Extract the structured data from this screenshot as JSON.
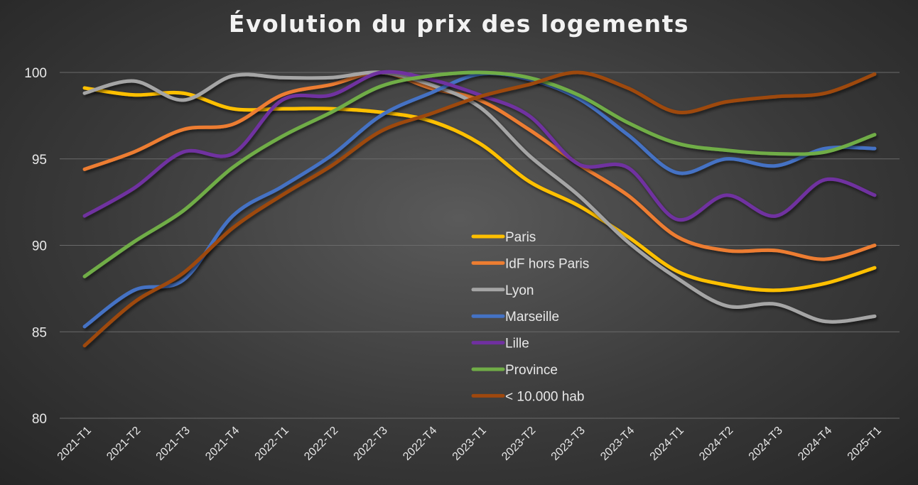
{
  "chart_data": {
    "type": "line",
    "title": "Évolution du prix des logements",
    "xlabel": "",
    "ylabel": "",
    "categories": [
      "2021-T1",
      "2021-T2",
      "2021-T3",
      "2021-T4",
      "2022-T1",
      "2022-T2",
      "2022-T3",
      "2022-T4",
      "2023-T1",
      "2023-T2",
      "2023-T3",
      "2023-T4",
      "2024-T1",
      "2024-T2",
      "2024-T3",
      "2024-T4",
      "2025-T1"
    ],
    "ylim": [
      80,
      100
    ],
    "yticks": [
      80,
      85,
      90,
      95,
      100
    ],
    "grid": true,
    "smooth": true,
    "legend_position": "center-inside",
    "series": [
      {
        "name": "Paris",
        "color": "#ffc000",
        "values": [
          99.1,
          98.7,
          98.8,
          97.9,
          97.9,
          97.9,
          97.7,
          97.2,
          95.9,
          93.7,
          92.3,
          90.5,
          88.5,
          87.7,
          87.4,
          87.8,
          88.7
        ]
      },
      {
        "name": "IdF hors Paris",
        "color": "#ed7d31",
        "values": [
          94.4,
          95.4,
          96.7,
          97.0,
          98.7,
          99.3,
          100,
          99.1,
          98.4,
          96.7,
          94.7,
          92.9,
          90.5,
          89.7,
          89.7,
          89.2,
          90.0
        ]
      },
      {
        "name": "Lyon",
        "color": "#a5a5a5",
        "values": [
          98.8,
          99.5,
          98.4,
          99.8,
          99.7,
          99.7,
          100,
          99.3,
          98.0,
          95.2,
          92.9,
          90.2,
          88.1,
          86.5,
          86.6,
          85.6,
          85.9
        ]
      },
      {
        "name": "Marseille",
        "color": "#4472c4",
        "values": [
          85.3,
          87.4,
          88.0,
          91.7,
          93.4,
          95.2,
          97.5,
          98.8,
          99.9,
          99.6,
          98.5,
          96.4,
          94.2,
          95.0,
          94.6,
          95.6,
          95.6
        ]
      },
      {
        "name": "Lille",
        "color": "#7030a0",
        "values": [
          91.7,
          93.3,
          95.4,
          95.3,
          98.4,
          98.7,
          100,
          99.6,
          98.7,
          97.5,
          94.7,
          94.5,
          91.5,
          92.9,
          91.7,
          93.8,
          92.9
        ]
      },
      {
        "name": "Province",
        "color": "#70ad47",
        "values": [
          88.2,
          90.2,
          92.0,
          94.5,
          96.3,
          97.7,
          99.2,
          99.8,
          100,
          99.7,
          98.7,
          97.1,
          95.9,
          95.5,
          95.3,
          95.4,
          96.4
        ]
      },
      {
        "name": "< 10.000 hab",
        "color": "#9e480e",
        "values": [
          84.2,
          86.7,
          88.4,
          91.0,
          92.9,
          94.6,
          96.6,
          97.6,
          98.6,
          99.3,
          100,
          99.1,
          97.7,
          98.3,
          98.6,
          98.8,
          99.9
        ]
      }
    ]
  }
}
